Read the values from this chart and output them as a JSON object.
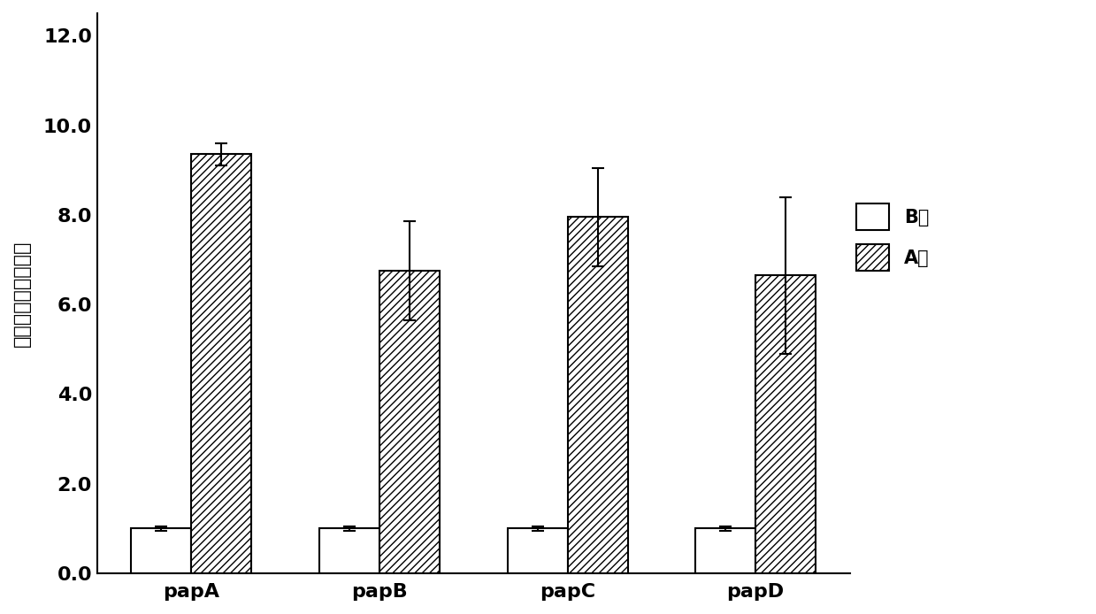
{
  "categories": [
    "papA",
    "papB",
    "papC",
    "papD"
  ],
  "B_values": [
    1.0,
    1.0,
    1.0,
    1.0
  ],
  "A_values": [
    9.35,
    6.75,
    7.95,
    6.65
  ],
  "B_errors": [
    0.05,
    0.05,
    0.05,
    0.05
  ],
  "A_errors": [
    0.25,
    1.1,
    1.1,
    1.75
  ],
  "ylabel": "基因相对表达变化量",
  "ylim": [
    0,
    12.5
  ],
  "yticks": [
    0.0,
    2.0,
    4.0,
    6.0,
    8.0,
    10.0,
    12.0
  ],
  "legend_B": "B组",
  "legend_A": "A组",
  "bar_width": 0.32,
  "background_color": "#ffffff",
  "bar_color_B": "#ffffff",
  "bar_color_A": "#ffffff",
  "bar_edgecolor": "#000000",
  "hatch_A": "////",
  "hatch_B": "",
  "label_fontsize": 16,
  "tick_fontsize": 16,
  "xticklabel_fontsize": 16,
  "legend_fontsize": 15
}
